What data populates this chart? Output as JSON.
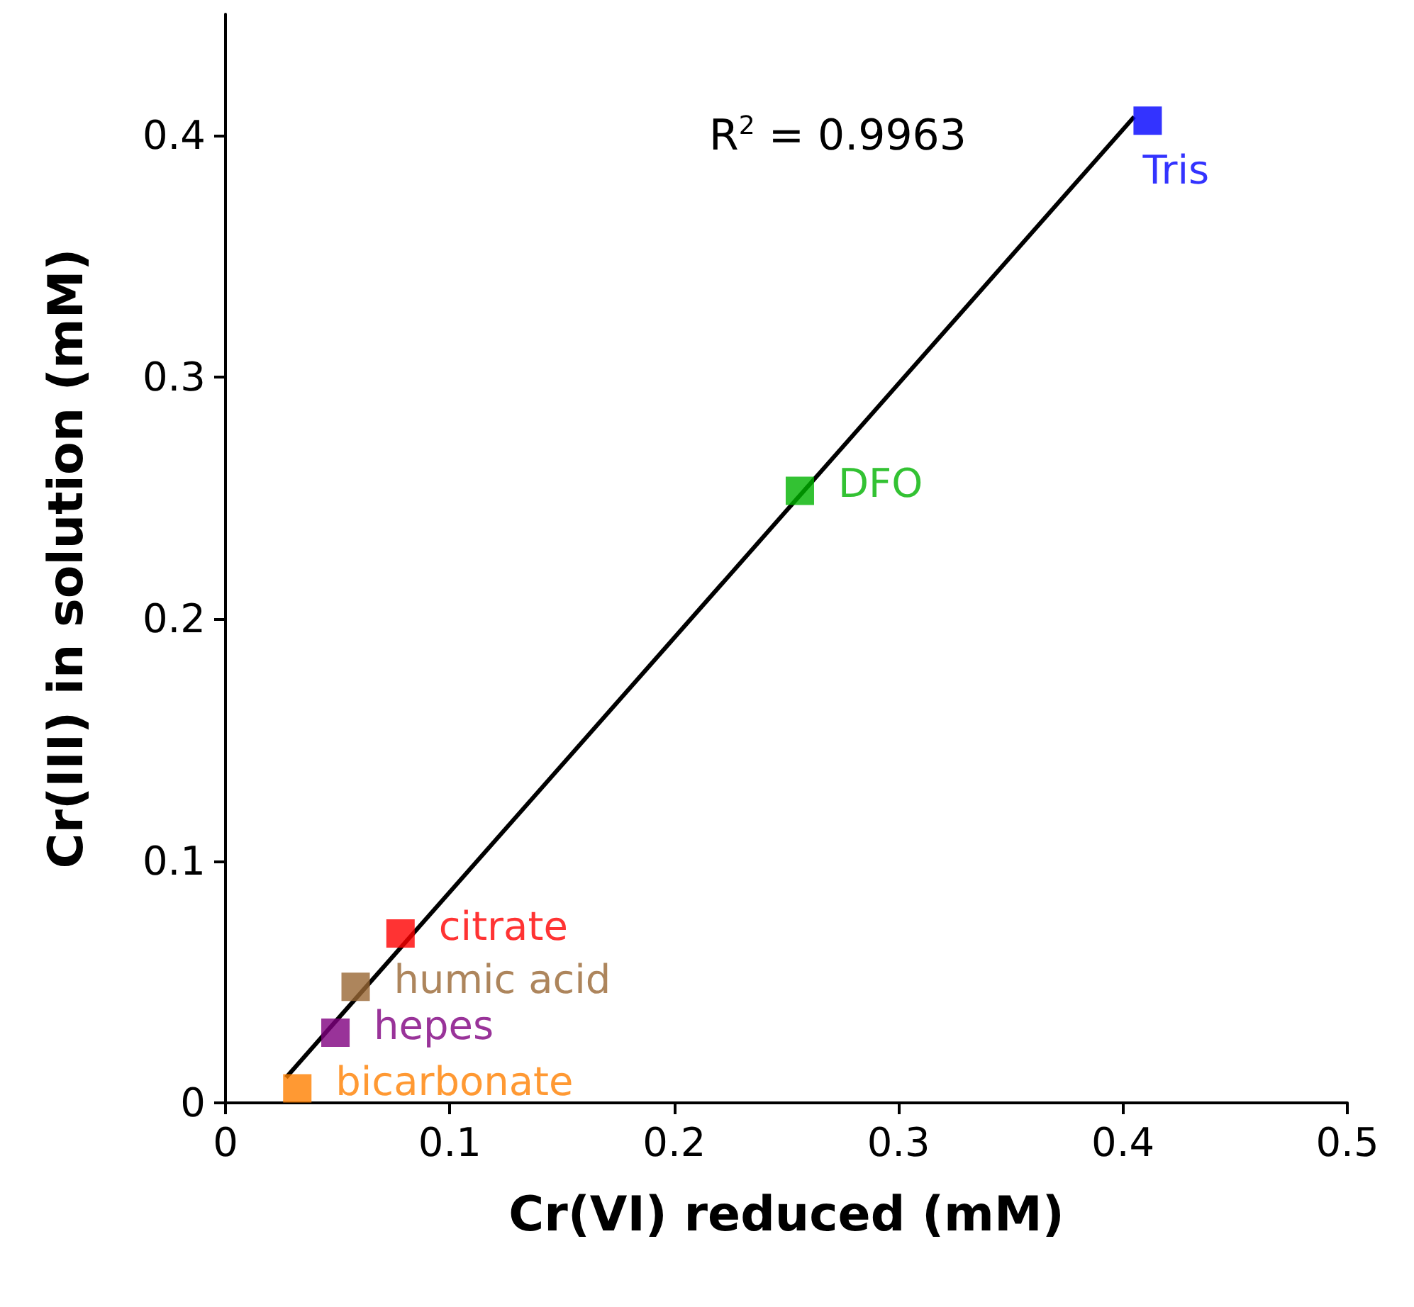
{
  "chart_data": {
    "type": "scatter",
    "xlabel": "Cr(VI) reduced (mM)",
    "ylabel": "Cr(III) in solution (mM)",
    "xlim": [
      0,
      0.5
    ],
    "xticks": [
      0,
      0.1,
      0.2,
      0.3,
      0.4,
      0.5
    ],
    "ylim": [
      0,
      0.45
    ],
    "yticks": [
      0,
      0.1,
      0.2,
      0.3,
      0.4
    ],
    "grid": false,
    "legend": false,
    "marker": "square",
    "annotations": [
      "R$^{2}$ = 0.9963"
    ],
    "series": [
      {
        "type": "line",
        "color": "#000000",
        "marker": "none",
        "line_style": "solid",
        "x": [
          0.027,
          0.405
        ],
        "values": [
          0.0105,
          0.4076
        ]
      },
      {
        "name": "Tris",
        "color": "#0000ff",
        "x": [
          0.411
        ],
        "values": [
          0.406
        ]
      },
      {
        "name": "DFO",
        "color": "#00b300",
        "x": [
          0.256
        ],
        "values": [
          0.253
        ]
      },
      {
        "name": "citrate",
        "color": "#ff0000",
        "x": [
          0.078
        ],
        "values": [
          0.07
        ]
      },
      {
        "name": "humic acid",
        "color": "#996633",
        "x": [
          0.058
        ],
        "values": [
          0.048
        ]
      },
      {
        "name": "hepes",
        "color": "#800080",
        "x": [
          0.049
        ],
        "values": [
          0.029
        ]
      },
      {
        "name": "bicarbonate",
        "color": "#ff8000",
        "x": [
          0.032
        ],
        "values": [
          0.006
        ]
      }
    ]
  }
}
